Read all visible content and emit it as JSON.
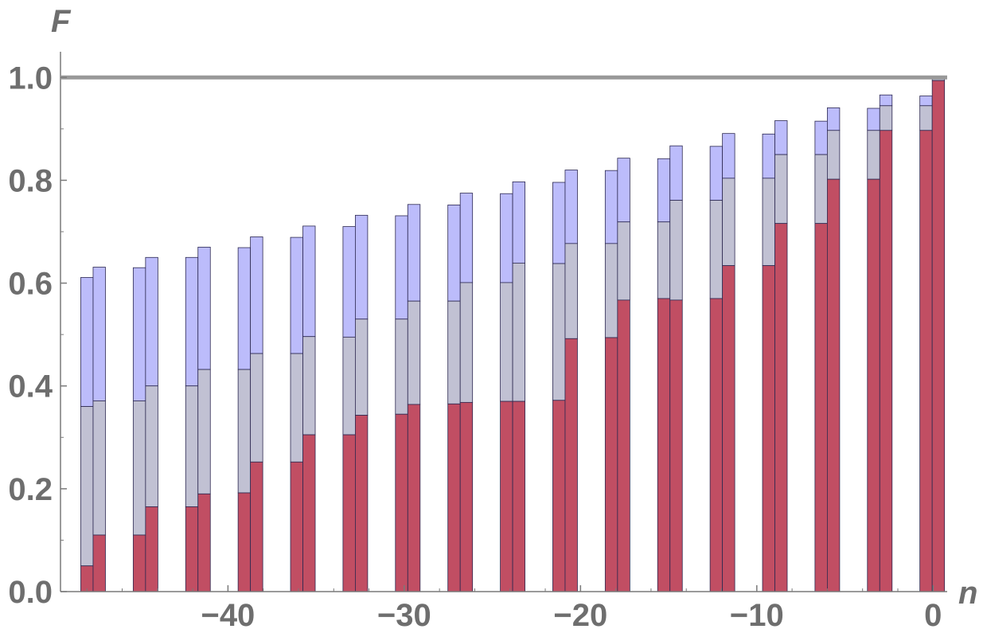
{
  "chart_data": {
    "type": "bar",
    "xlabel": "n",
    "ylabel": "F",
    "xlim": [
      -49.5,
      0.8
    ],
    "ylim": [
      0,
      1.05
    ],
    "x_ticks": [
      -40,
      -30,
      -20,
      -10,
      0
    ],
    "x_tick_labels": [
      "−40",
      "−30",
      "−20",
      "−10",
      "0"
    ],
    "y_ticks": [
      0,
      0.2,
      0.4,
      0.6,
      0.8,
      1.0
    ],
    "y_tick_labels": [
      "0.0",
      "0.2",
      "0.4",
      "0.6",
      "0.8",
      "1.0"
    ],
    "reference_line": 1.0,
    "grid": false,
    "pairs": [
      {
        "left": {
          "top": 0.611,
          "mid": 0.36,
          "base": 0.05
        },
        "right": {
          "top": 0.631,
          "mid": 0.371,
          "base": 0.11
        }
      },
      {
        "left": {
          "top": 0.63,
          "mid": 0.371,
          "base": 0.11
        },
        "right": {
          "top": 0.65,
          "mid": 0.4,
          "base": 0.165
        }
      },
      {
        "left": {
          "top": 0.65,
          "mid": 0.4,
          "base": 0.165
        },
        "right": {
          "top": 0.67,
          "mid": 0.432,
          "base": 0.19
        }
      },
      {
        "left": {
          "top": 0.669,
          "mid": 0.432,
          "base": 0.192
        },
        "right": {
          "top": 0.69,
          "mid": 0.463,
          "base": 0.252
        }
      },
      {
        "left": {
          "top": 0.689,
          "mid": 0.463,
          "base": 0.252
        },
        "right": {
          "top": 0.711,
          "mid": 0.496,
          "base": 0.305
        }
      },
      {
        "left": {
          "top": 0.71,
          "mid": 0.495,
          "base": 0.305
        },
        "right": {
          "top": 0.732,
          "mid": 0.53,
          "base": 0.343
        }
      },
      {
        "left": {
          "top": 0.731,
          "mid": 0.53,
          "base": 0.345
        },
        "right": {
          "top": 0.753,
          "mid": 0.565,
          "base": 0.364
        }
      },
      {
        "left": {
          "top": 0.752,
          "mid": 0.565,
          "base": 0.365
        },
        "right": {
          "top": 0.775,
          "mid": 0.601,
          "base": 0.368
        }
      },
      {
        "left": {
          "top": 0.774,
          "mid": 0.601,
          "base": 0.37
        },
        "right": {
          "top": 0.797,
          "mid": 0.639,
          "base": 0.37
        }
      },
      {
        "left": {
          "top": 0.796,
          "mid": 0.638,
          "base": 0.372
        },
        "right": {
          "top": 0.82,
          "mid": 0.677,
          "base": 0.492
        }
      },
      {
        "left": {
          "top": 0.819,
          "mid": 0.677,
          "base": 0.494
        },
        "right": {
          "top": 0.843,
          "mid": 0.719,
          "base": 0.567
        }
      },
      {
        "left": {
          "top": 0.842,
          "mid": 0.719,
          "base": 0.57
        },
        "right": {
          "top": 0.867,
          "mid": 0.761,
          "base": 0.567
        }
      },
      {
        "left": {
          "top": 0.866,
          "mid": 0.761,
          "base": 0.57
        },
        "right": {
          "top": 0.891,
          "mid": 0.804,
          "base": 0.634
        }
      },
      {
        "left": {
          "top": 0.89,
          "mid": 0.804,
          "base": 0.634
        },
        "right": {
          "top": 0.916,
          "mid": 0.85,
          "base": 0.716
        }
      },
      {
        "left": {
          "top": 0.915,
          "mid": 0.85,
          "base": 0.716
        },
        "right": {
          "top": 0.941,
          "mid": 0.897,
          "base": 0.802
        }
      },
      {
        "left": {
          "top": 0.94,
          "mid": 0.897,
          "base": 0.802
        },
        "right": {
          "top": 0.966,
          "mid": 0.945,
          "base": 0.897
        }
      },
      {
        "left": {
          "top": 0.964,
          "mid": 0.945,
          "base": 0.897
        },
        "right": {
          "top": 1.0,
          "mid": 0.998,
          "base": 0.994
        }
      }
    ],
    "colors": {
      "top": "#bcbcfb",
      "mid": "#c1c1d3",
      "base": "#c14e63",
      "bar_edge": "#2c2850",
      "axis": "#7a7a7a",
      "reference": "#999999",
      "accent_line": "#e07a20"
    }
  }
}
